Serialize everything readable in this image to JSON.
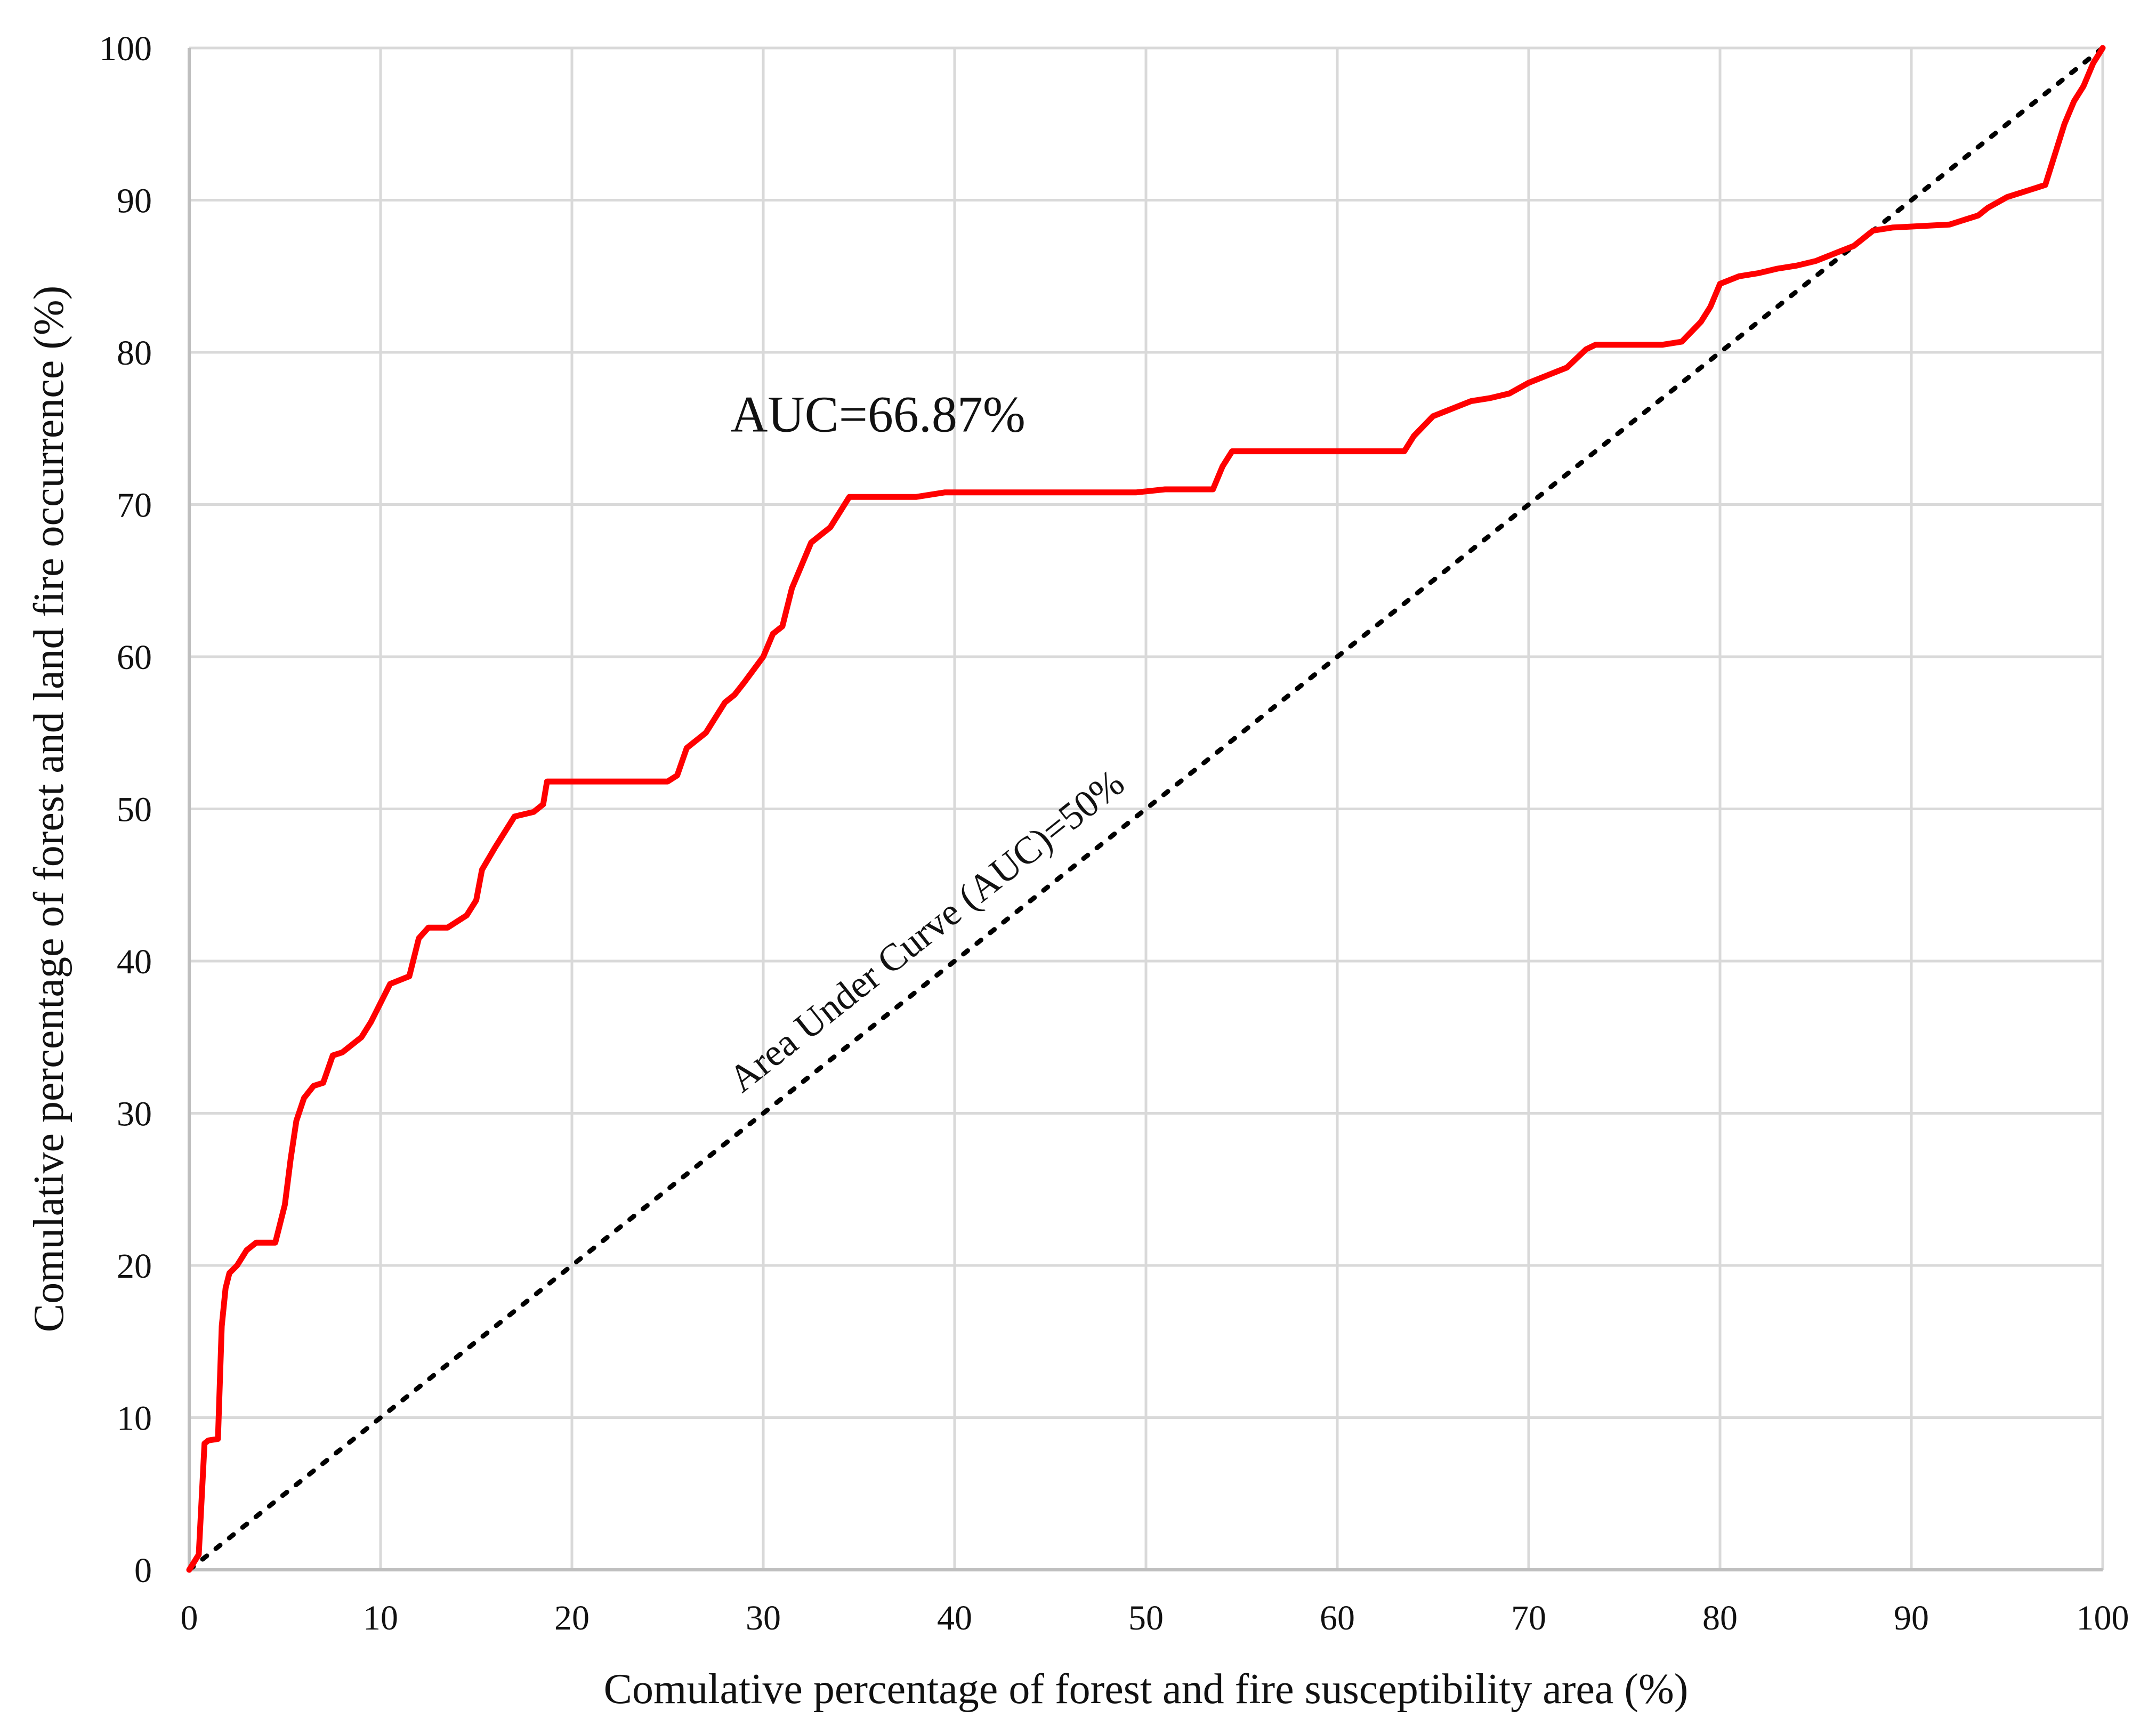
{
  "chart_data": {
    "type": "line",
    "title": "",
    "xlabel": "Comulative percentage of forest and fire susceptibility area (%)",
    "ylabel": "Comulative percentage of forest and land fire occurrence (%)",
    "xlim": [
      0,
      100
    ],
    "ylim": [
      0,
      100
    ],
    "xticks": [
      "0",
      "10",
      "20",
      "30",
      "40",
      "50",
      "60",
      "70",
      "80",
      "90",
      "100"
    ],
    "yticks": [
      "0",
      "10",
      "20",
      "30",
      "40",
      "50",
      "60",
      "70",
      "80",
      "90",
      "100"
    ],
    "grid": true,
    "legend": "none",
    "colors": {
      "curve": "#ff0000",
      "diagonal": "#000000",
      "grid": "#d9d9d9",
      "axis": "#bfbfbf"
    },
    "annotations": {
      "auc": "AUC=66.87%",
      "diagonal": "Area Under Curve (AUC)=50%"
    },
    "series": [
      {
        "style": "solid",
        "x": [
          0,
          0.5,
          0.8,
          1.0,
          1.5,
          1.7,
          1.9,
          2.1,
          2.5,
          3.0,
          3.5,
          4.5,
          5.0,
          5.3,
          5.6,
          6.0,
          6.5,
          7.0,
          7.5,
          8.0,
          9.0,
          9.5,
          10.5,
          11.5,
          12.0,
          12.5,
          13.5,
          14.5,
          15.0,
          15.3,
          16.0,
          16.5,
          17.0,
          18.0,
          18.5,
          18.7,
          19.0,
          22.0,
          25.0,
          25.5,
          26.0,
          26.5,
          27.0,
          28.0,
          28.5,
          29.0,
          30.0,
          30.5,
          31.0,
          31.5,
          32.0,
          32.5,
          33.0,
          33.5,
          34.0,
          34.5,
          35.0,
          38.0,
          39.5,
          45.0,
          49.5,
          51.0,
          53.5,
          54.0,
          54.5,
          55.0,
          60.0,
          63.5,
          64.0,
          65.0,
          66.0,
          67.0,
          68.0,
          69.0,
          70.0,
          71.0,
          72.0,
          73.0,
          73.5,
          74.0,
          77.0,
          78.0,
          79.0,
          79.5,
          80.0,
          81.0,
          82.0,
          83.0,
          84.0,
          85.0,
          86.0,
          87.0,
          88.0,
          89.0,
          92.0,
          93.5,
          94.0,
          95.0,
          96.0,
          96.5,
          97.0,
          98.0,
          98.5,
          99.0,
          99.5,
          100.0
        ],
        "y": [
          0,
          1.0,
          8.3,
          8.5,
          8.6,
          16.0,
          18.5,
          19.5,
          20.0,
          21.0,
          21.5,
          21.5,
          24.0,
          27.0,
          29.5,
          31.0,
          31.8,
          32.0,
          33.8,
          34.0,
          35.0,
          36.0,
          38.5,
          39.0,
          41.5,
          42.2,
          42.2,
          43.0,
          44.0,
          46.0,
          47.5,
          48.5,
          49.5,
          49.8,
          50.3,
          51.8,
          51.8,
          51.8,
          51.8,
          52.2,
          54.0,
          54.5,
          55.0,
          57.0,
          57.5,
          58.3,
          60.0,
          61.5,
          62.0,
          64.5,
          66.0,
          67.5,
          68.0,
          68.5,
          69.5,
          70.5,
          70.5,
          70.5,
          70.8,
          70.8,
          70.8,
          71.0,
          71.0,
          72.5,
          73.5,
          73.5,
          73.5,
          73.5,
          74.5,
          75.8,
          76.3,
          76.8,
          77.0,
          77.3,
          78.0,
          78.5,
          79.0,
          80.2,
          80.5,
          80.5,
          80.5,
          80.7,
          82.0,
          83.0,
          84.5,
          85.0,
          85.2,
          85.5,
          85.7,
          86.0,
          86.5,
          87.0,
          88.0,
          88.2,
          88.4,
          89.0,
          89.5,
          90.2,
          90.6,
          90.8,
          91.0,
          95.0,
          96.5,
          97.5,
          99.0,
          100.0
        ]
      },
      {
        "style": "dotted",
        "x": [
          0,
          100
        ],
        "y": [
          0,
          100
        ]
      }
    ]
  }
}
